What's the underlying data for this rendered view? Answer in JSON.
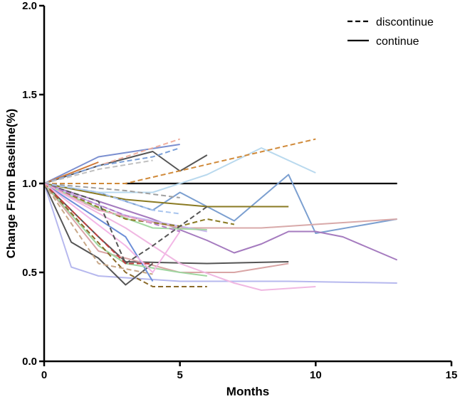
{
  "chart_data": {
    "type": "line",
    "title": "",
    "xlabel": "Months",
    "ylabel": "Change From Baseline(%)",
    "xlim": [
      0,
      15
    ],
    "ylim": [
      0,
      2.0
    ],
    "x_ticks": [
      "0",
      "5",
      "10",
      "15"
    ],
    "y_ticks": [
      "0.0",
      "0.5",
      "1.0",
      "1.5",
      "2.0"
    ],
    "legend": [
      {
        "label": "discontinue",
        "style": "dashed"
      },
      {
        "label": "continue",
        "style": "solid"
      }
    ],
    "series": [
      {
        "name": "continue-black",
        "style": "solid",
        "color": "#000000",
        "x": [
          3,
          13
        ],
        "y": [
          1.0,
          1.0
        ]
      },
      {
        "name": "continue-blue-long",
        "style": "solid",
        "color": "#7b9fd0",
        "x": [
          0,
          2,
          4,
          5,
          7,
          9,
          10,
          13
        ],
        "y": [
          1.0,
          0.95,
          0.85,
          0.95,
          0.79,
          1.05,
          0.72,
          0.8
        ]
      },
      {
        "name": "continue-lightblue",
        "style": "solid",
        "color": "#b9d9ee",
        "x": [
          0,
          2,
          4,
          6,
          8,
          10
        ],
        "y": [
          1.0,
          0.95,
          0.95,
          1.05,
          1.2,
          1.06
        ]
      },
      {
        "name": "continue-purple",
        "style": "solid",
        "color": "#a57bbf",
        "x": [
          0,
          2,
          4,
          6,
          7,
          8,
          9,
          10,
          11,
          13
        ],
        "y": [
          1.0,
          0.9,
          0.8,
          0.68,
          0.61,
          0.66,
          0.73,
          0.73,
          0.7,
          0.57
        ]
      },
      {
        "name": "continue-rose",
        "style": "solid",
        "color": "#d8a9a9",
        "x": [
          0,
          2,
          5,
          8,
          10,
          13
        ],
        "y": [
          1.0,
          0.85,
          0.75,
          0.75,
          0.77,
          0.8
        ]
      },
      {
        "name": "continue-periwinkle",
        "style": "solid",
        "color": "#b6b8ee",
        "x": [
          0,
          1,
          2,
          5,
          9,
          13
        ],
        "y": [
          1.0,
          0.53,
          0.48,
          0.45,
          0.45,
          0.44
        ]
      },
      {
        "name": "continue-darkgray-long",
        "style": "solid",
        "color": "#555555",
        "x": [
          0,
          2,
          3,
          6,
          9
        ],
        "y": [
          1.0,
          0.7,
          0.56,
          0.55,
          0.56
        ]
      },
      {
        "name": "continue-rose-long",
        "style": "solid",
        "color": "#d9a5a5",
        "x": [
          0,
          2,
          5,
          7,
          9
        ],
        "y": [
          1.0,
          0.62,
          0.5,
          0.5,
          0.55
        ]
      },
      {
        "name": "continue-pink-long",
        "style": "solid",
        "color": "#f0b8e2",
        "x": [
          0,
          3,
          5,
          7,
          8,
          9,
          10
        ],
        "y": [
          1.0,
          0.75,
          0.55,
          0.44,
          0.4,
          0.41,
          0.42
        ]
      },
      {
        "name": "continue-olive",
        "style": "solid",
        "color": "#8a7a22",
        "x": [
          0,
          1,
          3,
          6,
          9
        ],
        "y": [
          1.0,
          0.97,
          0.91,
          0.87,
          0.87
        ]
      },
      {
        "name": "continue-darkgray-up",
        "style": "solid",
        "color": "#555555",
        "x": [
          0,
          2,
          4,
          5,
          6
        ],
        "y": [
          1.0,
          1.1,
          1.18,
          1.07,
          1.16
        ]
      },
      {
        "name": "continue-blue-up",
        "style": "solid",
        "color": "#7b8fd0",
        "x": [
          0,
          2,
          5
        ],
        "y": [
          1.0,
          1.15,
          1.22
        ]
      },
      {
        "name": "continue-orange-up",
        "style": "solid",
        "color": "#d07a3a",
        "x": [
          0,
          2
        ],
        "y": [
          1.0,
          1.12
        ]
      },
      {
        "name": "continue-gray-drop",
        "style": "solid",
        "color": "#555555",
        "x": [
          0,
          1,
          2,
          3,
          4
        ],
        "y": [
          1.0,
          0.67,
          0.58,
          0.43,
          0.55
        ]
      },
      {
        "name": "continue-blue-drop",
        "style": "solid",
        "color": "#6d8fd8",
        "x": [
          0,
          3,
          4
        ],
        "y": [
          1.0,
          0.7,
          0.45
        ]
      },
      {
        "name": "continue-green",
        "style": "solid",
        "color": "#9fd69f",
        "x": [
          0,
          2,
          3,
          5,
          6
        ],
        "y": [
          1.0,
          0.65,
          0.55,
          0.5,
          0.48
        ]
      },
      {
        "name": "continue-lavender",
        "style": "solid",
        "color": "#c7b6ee",
        "x": [
          0,
          3,
          6
        ],
        "y": [
          1.0,
          0.82,
          0.73
        ]
      },
      {
        "name": "continue-pink-short",
        "style": "solid",
        "color": "#f3b6e6",
        "x": [
          0,
          3,
          4,
          5
        ],
        "y": [
          1.0,
          0.65,
          0.5,
          0.73
        ]
      },
      {
        "name": "continue-lightgreen",
        "style": "solid",
        "color": "#a3d9a3",
        "x": [
          0,
          2,
          4,
          6
        ],
        "y": [
          1.0,
          0.86,
          0.75,
          0.74
        ]
      },
      {
        "name": "discontinue-orange",
        "style": "dashed",
        "color": "#d08a3a",
        "x": [
          0,
          3,
          10
        ],
        "y": [
          1.0,
          1.0,
          1.25
        ]
      },
      {
        "name": "discontinue-peach",
        "style": "dashed",
        "color": "#f0b0a0",
        "x": [
          0,
          2,
          5
        ],
        "y": [
          1.0,
          1.1,
          1.25
        ]
      },
      {
        "name": "discontinue-blue",
        "style": "dashed",
        "color": "#7ba0d8",
        "x": [
          0,
          2,
          4,
          5
        ],
        "y": [
          1.0,
          1.1,
          1.15,
          1.2
        ]
      },
      {
        "name": "discontinue-lightgray",
        "style": "dashed",
        "color": "#c0c0c0",
        "x": [
          0,
          2,
          4
        ],
        "y": [
          1.0,
          1.08,
          1.13
        ]
      },
      {
        "name": "discontinue-gray",
        "style": "dashed",
        "color": "#a0a0a0",
        "x": [
          0,
          3,
          5
        ],
        "y": [
          1.0,
          0.96,
          0.92
        ]
      },
      {
        "name": "discontinue-olive",
        "style": "dashed",
        "color": "#8a7a22",
        "x": [
          0,
          3,
          5,
          6,
          7
        ],
        "y": [
          1.0,
          0.8,
          0.76,
          0.8,
          0.77
        ]
      },
      {
        "name": "discontinue-lightblue",
        "style": "dashed",
        "color": "#a8c4ee",
        "x": [
          0,
          2,
          4,
          5
        ],
        "y": [
          1.0,
          0.95,
          0.85,
          0.83
        ]
      },
      {
        "name": "discontinue-darkgray",
        "style": "dashed",
        "color": "#555555",
        "x": [
          0,
          2,
          3,
          4,
          6
        ],
        "y": [
          1.0,
          0.9,
          0.55,
          0.65,
          0.87
        ]
      },
      {
        "name": "discontinue-brown",
        "style": "dashed",
        "color": "#8a6a2a",
        "x": [
          0,
          3,
          4,
          6
        ],
        "y": [
          1.0,
          0.5,
          0.42,
          0.42
        ]
      },
      {
        "name": "discontinue-red",
        "style": "dashed",
        "color": "#c04040",
        "x": [
          0,
          2,
          3,
          4
        ],
        "y": [
          1.0,
          0.7,
          0.55,
          0.55
        ]
      },
      {
        "name": "discontinue-tan",
        "style": "dashed",
        "color": "#c8a888",
        "x": [
          0,
          2,
          4
        ],
        "y": [
          1.0,
          0.55,
          0.49
        ]
      },
      {
        "name": "discontinue-purple",
        "style": "dashed",
        "color": "#b37cc8",
        "x": [
          0,
          3,
          5
        ],
        "y": [
          1.0,
          0.82,
          0.73
        ]
      },
      {
        "name": "discontinue-pink",
        "style": "dashed",
        "color": "#f0a8c8",
        "x": [
          0,
          2,
          4
        ],
        "y": [
          1.0,
          0.85,
          0.78
        ]
      }
    ]
  }
}
